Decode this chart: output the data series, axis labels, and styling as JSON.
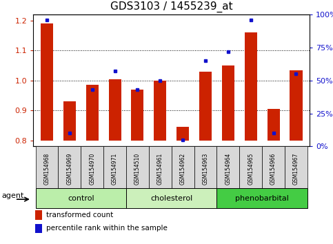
{
  "title": "GDS3103 / 1455239_at",
  "samples": [
    "GSM154968",
    "GSM154969",
    "GSM154970",
    "GSM154971",
    "GSM154510",
    "GSM154961",
    "GSM154962",
    "GSM154963",
    "GSM154964",
    "GSM154965",
    "GSM154966",
    "GSM154967"
  ],
  "transformed_count": [
    1.19,
    0.93,
    0.985,
    1.005,
    0.97,
    1.0,
    0.845,
    1.03,
    1.05,
    1.16,
    0.905,
    1.035
  ],
  "percentile_rank": [
    96,
    10,
    43,
    57,
    43,
    50,
    5,
    65,
    72,
    96,
    10,
    55
  ],
  "bar_bottom": 0.8,
  "ylim_left": [
    0.78,
    1.22
  ],
  "ylim_right": [
    0,
    100
  ],
  "yticks_left": [
    0.8,
    0.9,
    1.0,
    1.1,
    1.2
  ],
  "yticks_right": [
    0,
    25,
    50,
    75,
    100
  ],
  "ytick_labels_right": [
    "0%",
    "25%",
    "50%",
    "75%",
    "100%"
  ],
  "bar_color": "#cc2200",
  "dot_color": "#1111cc",
  "groups": [
    {
      "label": "control",
      "indices": [
        0,
        1,
        2,
        3
      ],
      "color": "#bbeeaa"
    },
    {
      "label": "cholesterol",
      "indices": [
        4,
        5,
        6,
        7
      ],
      "color": "#ccf0bb"
    },
    {
      "label": "phenobarbital",
      "indices": [
        8,
        9,
        10,
        11
      ],
      "color": "#44cc44"
    }
  ],
  "legend_bar": "transformed count",
  "legend_dot": "percentile rank within the sample",
  "axis_label_color_left": "#cc2200",
  "axis_label_color_right": "#1111cc",
  "title_fontsize": 11,
  "tick_fontsize": 7,
  "group_fontsize": 8
}
